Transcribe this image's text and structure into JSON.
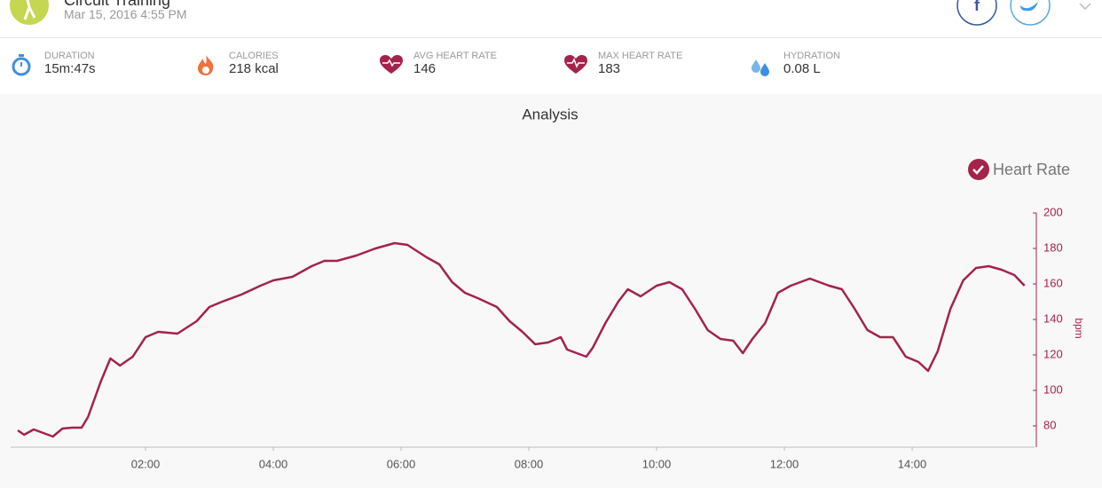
{
  "header": {
    "title": "Circuit Training",
    "date": "Mar 15, 2016 4:55 PM"
  },
  "stats": [
    {
      "label": "DURATION",
      "value": "15m:47s"
    },
    {
      "label": "CALORIES",
      "value": "218 kcal"
    },
    {
      "label": "AVG HEART RATE",
      "value": "146"
    },
    {
      "label": "MAX HEART RATE",
      "value": "183"
    },
    {
      "label": "HYDRATION",
      "value": "0.08 L"
    }
  ],
  "chart_data": {
    "type": "line",
    "title": "Analysis",
    "y_label": "bpm",
    "legend": "top-right",
    "y_axis_side": "right",
    "x": [
      0,
      0.1,
      0.25,
      0.4,
      0.55,
      0.7,
      0.85,
      1.0,
      1.1,
      1.3,
      1.45,
      1.6,
      1.8,
      2.0,
      2.2,
      2.5,
      2.8,
      3.0,
      3.2,
      3.5,
      3.8,
      4.0,
      4.3,
      4.6,
      4.8,
      5.0,
      5.3,
      5.6,
      5.9,
      6.1,
      6.4,
      6.6,
      6.8,
      7.0,
      7.2,
      7.5,
      7.7,
      7.9,
      8.1,
      8.3,
      8.5,
      8.6,
      8.9,
      9.0,
      9.2,
      9.4,
      9.55,
      9.75,
      10.0,
      10.2,
      10.4,
      10.6,
      10.8,
      11.0,
      11.2,
      11.35,
      11.5,
      11.7,
      11.9,
      12.1,
      12.4,
      12.7,
      12.9,
      13.1,
      13.3,
      13.5,
      13.7,
      13.9,
      14.1,
      14.25,
      14.4,
      14.6,
      14.8,
      15.0,
      15.2,
      15.4,
      15.6,
      15.76
    ],
    "series": [
      {
        "name": "Heart Rate",
        "color": "#a3234b",
        "values": [
          77.5,
          75,
          78,
          76,
          74,
          78.5,
          79,
          79,
          85,
          105,
          118,
          114,
          119,
          130,
          133,
          132,
          139,
          147,
          150,
          154,
          159,
          162,
          164,
          170,
          173,
          173,
          176,
          180,
          183,
          182,
          175,
          171,
          161,
          155,
          152,
          147,
          139,
          133,
          126,
          127,
          130,
          123,
          119,
          124,
          138,
          150,
          157,
          153,
          159,
          161,
          157,
          146,
          134,
          129,
          128,
          121,
          129,
          138,
          155,
          159,
          163,
          159,
          157,
          146,
          134,
          130,
          130,
          119,
          116,
          111,
          122,
          146,
          162,
          169,
          170,
          168,
          165,
          159
        ]
      }
    ],
    "xlim": [
      -0.1,
      15.9
    ],
    "xticks": [
      {
        "value": 2,
        "label": "02:00"
      },
      {
        "value": 4,
        "label": "04:00"
      },
      {
        "value": 6,
        "label": "06:00"
      },
      {
        "value": 8,
        "label": "08:00"
      },
      {
        "value": 10,
        "label": "10:00"
      },
      {
        "value": 12,
        "label": "12:00"
      },
      {
        "value": 14,
        "label": "14:00"
      }
    ],
    "ylim": [
      68,
      200
    ],
    "yticks": [
      80,
      100,
      120,
      140,
      160,
      180,
      200
    ]
  }
}
